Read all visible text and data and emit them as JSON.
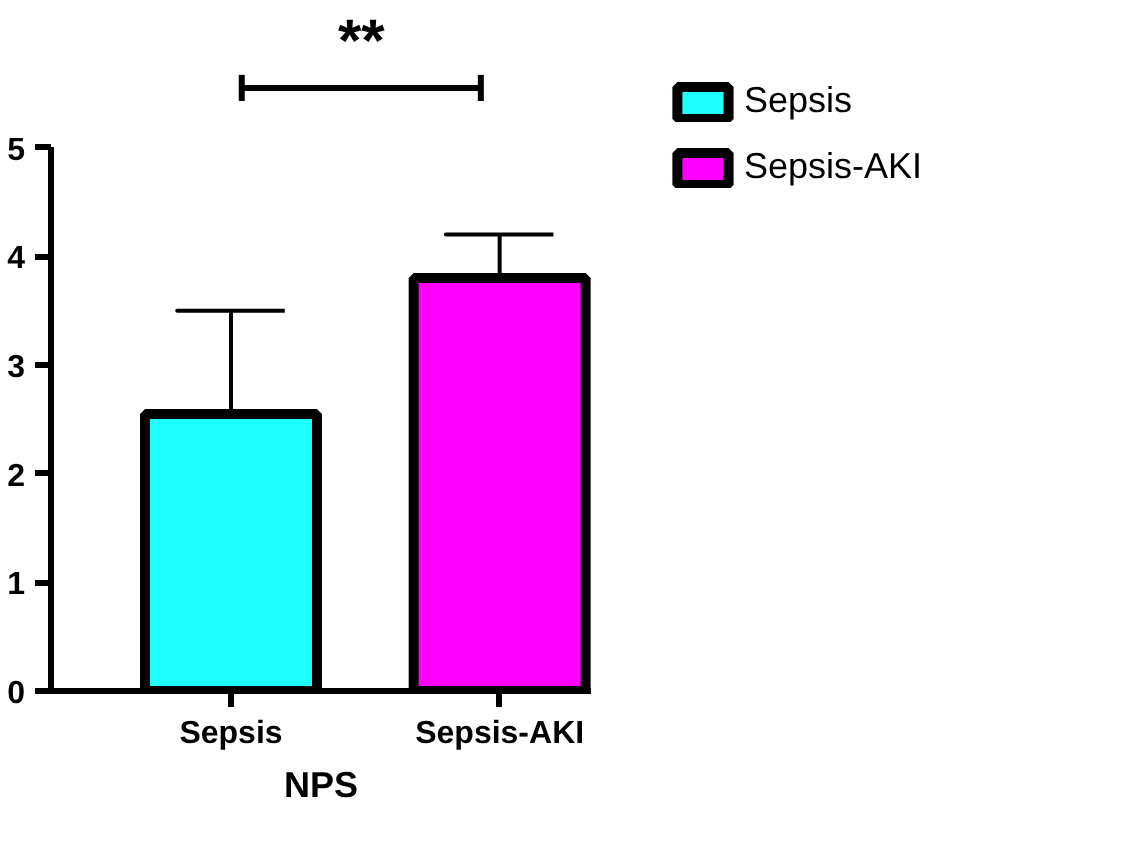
{
  "chart_data": {
    "type": "bar",
    "xlabel": "NPS",
    "categories": [
      "Sepsis",
      "Sepsis-AKI"
    ],
    "series": [
      {
        "name": "Sepsis",
        "color": "#1effff",
        "values": [
          2.55,
          null
        ],
        "errors": [
          [
            2.55,
            3.5
          ],
          null
        ]
      },
      {
        "name": "Sepsis-AKI",
        "color": "#ff00ff",
        "values": [
          null,
          3.8
        ],
        "errors": [
          null,
          [
            3.8,
            4.2
          ]
        ]
      }
    ],
    "ylim": [
      0,
      5
    ],
    "yticks": [
      0,
      1,
      2,
      3,
      4,
      5
    ],
    "legend": "top right",
    "annotations": [
      "**"
    ]
  }
}
